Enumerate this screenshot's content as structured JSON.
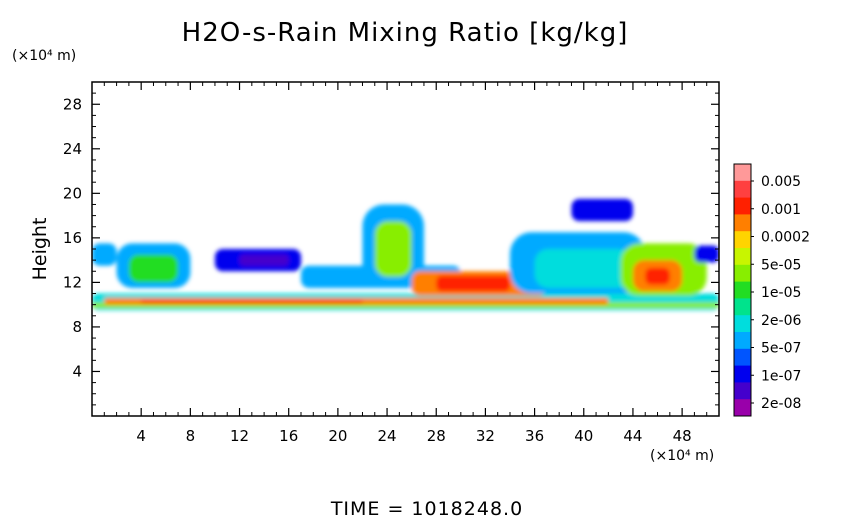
{
  "chart_data": {
    "type": "heatmap",
    "title": "H2O-s-Rain Mixing Ratio [kg/kg]",
    "ylabel": "Height",
    "xlabel": "",
    "x_unit_label": "(×10⁴ m)",
    "y_unit_label": "(×10⁴ m)",
    "xlim": [
      0,
      51
    ],
    "ylim": [
      0,
      30
    ],
    "x_ticks": [
      4,
      8,
      12,
      16,
      20,
      24,
      28,
      32,
      36,
      40,
      44,
      48
    ],
    "y_ticks": [
      4,
      8,
      12,
      16,
      20,
      24,
      28
    ],
    "colorbar": {
      "labels": [
        "0.005",
        "0.001",
        "0.0002",
        "5e-05",
        "1e-05",
        "2e-06",
        "5e-07",
        "1e-07",
        "2e-08"
      ],
      "colors": [
        "#ff9999",
        "#ff4040",
        "#ff2000",
        "#ff7f00",
        "#ffd400",
        "#c8f500",
        "#88ee00",
        "#22dd22",
        "#00e38c",
        "#00dddd",
        "#00aaff",
        "#0055ff",
        "#0000ee",
        "#4400cc",
        "#9900aa"
      ]
    },
    "levels": {
      "faint": "#0055ff",
      "low": "#00aaff",
      "mid": "#00dddd",
      "midhigh": "#00e38c",
      "green": "#22dd22",
      "yellowgreen": "#88ee00",
      "yellow": "#ffd400",
      "orange": "#ff7f00",
      "red": "#ff2000",
      "dark": "#0000ee",
      "purple": "#4400cc"
    },
    "regions": [
      {
        "x0": 0,
        "x1": 51,
        "y0": 9.5,
        "y1": 11.0,
        "level": "mid"
      },
      {
        "x0": 0,
        "x1": 51,
        "y0": 9.7,
        "y1": 10.2,
        "level": "yellowgreen"
      },
      {
        "x0": 1,
        "x1": 42,
        "y0": 10.0,
        "y1": 10.6,
        "level": "orange"
      },
      {
        "x0": 4,
        "x1": 22,
        "y0": 10.1,
        "y1": 10.4,
        "level": "red"
      },
      {
        "x0": 0,
        "x1": 2,
        "y0": 13.5,
        "y1": 15.5,
        "level": "low"
      },
      {
        "x0": 2,
        "x1": 8,
        "y0": 11.5,
        "y1": 15.5,
        "level": "low"
      },
      {
        "x0": 3,
        "x1": 7,
        "y0": 12,
        "y1": 14.5,
        "level": "green"
      },
      {
        "x0": 10,
        "x1": 17,
        "y0": 13.0,
        "y1": 15.0,
        "level": "dark"
      },
      {
        "x0": 12,
        "x1": 16,
        "y0": 13.5,
        "y1": 14.5,
        "level": "purple"
      },
      {
        "x0": 17,
        "x1": 30,
        "y0": 11.5,
        "y1": 13.5,
        "level": "low"
      },
      {
        "x0": 22,
        "x1": 27,
        "y0": 11.5,
        "y1": 19.0,
        "level": "low"
      },
      {
        "x0": 23,
        "x1": 26,
        "y0": 12.5,
        "y1": 17.5,
        "level": "yellowgreen"
      },
      {
        "x0": 26,
        "x1": 37,
        "y0": 10.8,
        "y1": 13.0,
        "level": "orange"
      },
      {
        "x0": 28,
        "x1": 34,
        "y0": 11.2,
        "y1": 12.6,
        "level": "red"
      },
      {
        "x0": 34,
        "x1": 45,
        "y0": 11.0,
        "y1": 16.5,
        "level": "low"
      },
      {
        "x0": 36,
        "x1": 44,
        "y0": 11.5,
        "y1": 15.0,
        "level": "mid"
      },
      {
        "x0": 39,
        "x1": 44,
        "y0": 17.5,
        "y1": 19.5,
        "level": "dark"
      },
      {
        "x0": 43,
        "x1": 50,
        "y0": 10.8,
        "y1": 15.5,
        "level": "yellowgreen"
      },
      {
        "x0": 44,
        "x1": 48,
        "y0": 11.2,
        "y1": 14.0,
        "level": "orange"
      },
      {
        "x0": 45,
        "x1": 47,
        "y0": 11.8,
        "y1": 13.3,
        "level": "red"
      },
      {
        "x0": 49,
        "x1": 51,
        "y0": 13.8,
        "y1": 15.3,
        "level": "dark"
      }
    ]
  },
  "footer": {
    "time_text": "TIME  =  1018248.0"
  }
}
